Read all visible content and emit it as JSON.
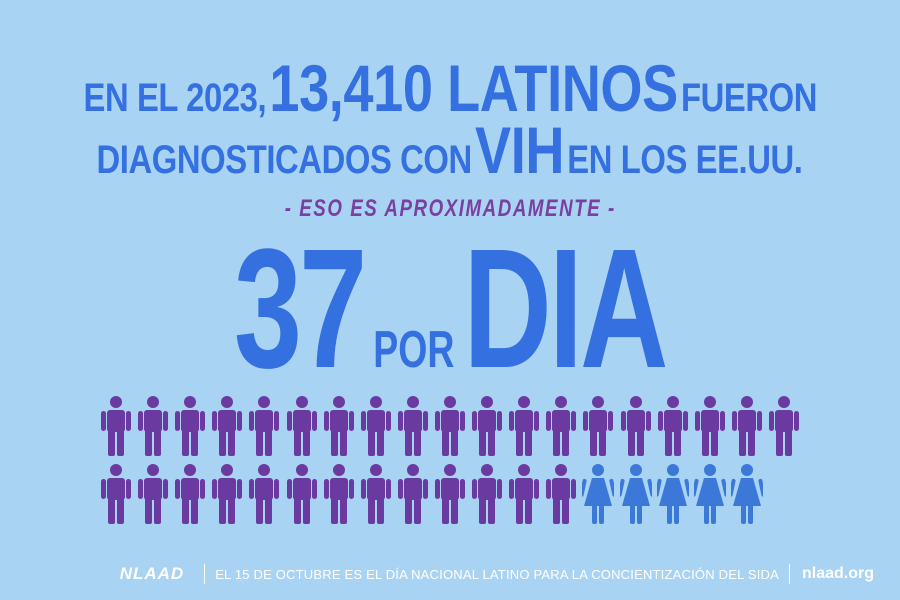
{
  "headline": {
    "line1_a": "EN EL 2023,",
    "line1_b": "13,410 LATINOS",
    "line1_c": "FUERON",
    "line2_a": "DIAGNOSTICADOS CON",
    "line2_b": "VIH",
    "line2_c": "EN LOS EE.UU."
  },
  "subheading": "- ESO ES APROXIMADAMENTE -",
  "rate": {
    "number": "37",
    "connector": "POR",
    "unit": "DIA"
  },
  "people": {
    "total": 37,
    "purple_count": 32,
    "blue_count": 5,
    "purple_color": "#6a3aa0",
    "blue_color": "#3b78d8"
  },
  "footer": {
    "logo": "NLAAD",
    "message": "EL 15 DE OCTUBRE ES EL DÍA NACIONAL LATINO PARA LA CONCIENTIZACIÓN DEL SIDA",
    "url": "nlaad.org"
  }
}
